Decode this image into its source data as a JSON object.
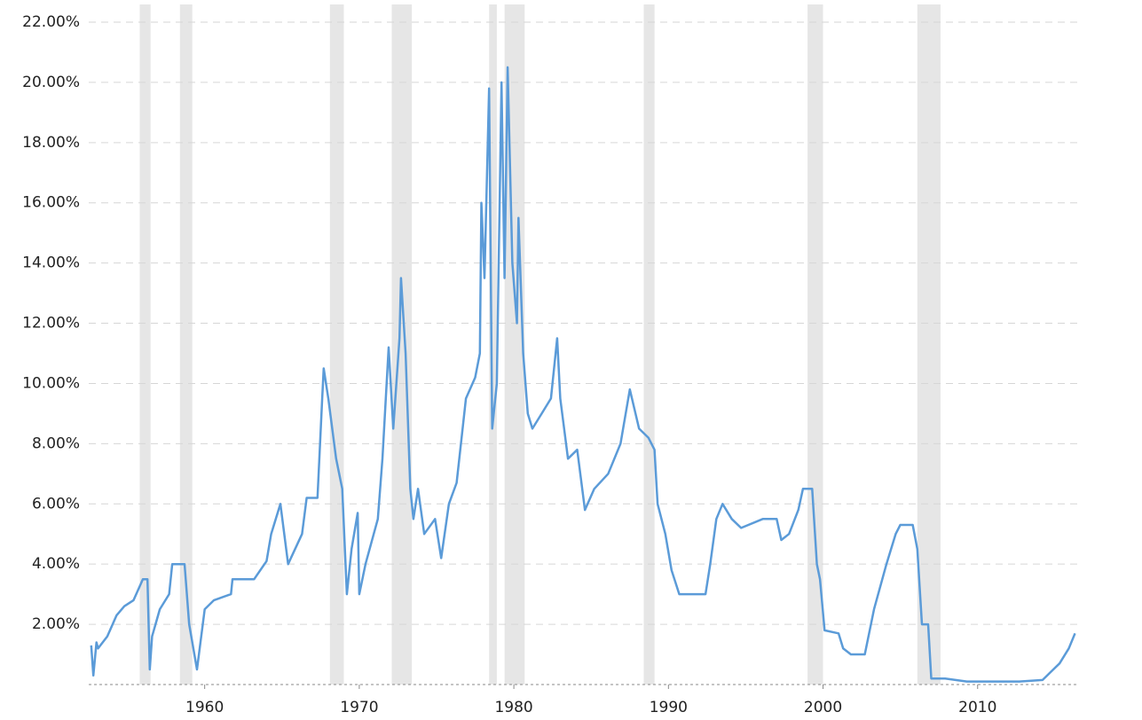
{
  "chart_data": {
    "type": "line",
    "color": "#5b9bd8",
    "recession_color": "#e6e6e6",
    "grid": true,
    "xlim": [
      1952.5,
      2016.5
    ],
    "xticks": [
      1960,
      1970,
      1980,
      1990,
      2000,
      2010
    ],
    "ylim": [
      0,
      22
    ],
    "yticks": [
      {
        "value": 2,
        "label": "2.00%"
      },
      {
        "value": 4,
        "label": "4.00%"
      },
      {
        "value": 6,
        "label": "6.00%"
      },
      {
        "value": 8,
        "label": "8.00%"
      },
      {
        "value": 10,
        "label": "10.00%"
      },
      {
        "value": 12,
        "label": "12.00%"
      },
      {
        "value": 14,
        "label": "14.00%"
      },
      {
        "value": 16,
        "label": "16.00%"
      },
      {
        "value": 18,
        "label": "18.00%"
      },
      {
        "value": 20,
        "label": "20.00%"
      },
      {
        "value": 22,
        "label": "22.00%"
      }
    ],
    "recessions": [
      [
        1955.8,
        1956.5
      ],
      [
        1958.4,
        1959.2
      ],
      [
        1968.1,
        1969.0
      ],
      [
        1972.1,
        1973.4
      ],
      [
        1978.4,
        1978.9
      ],
      [
        1979.4,
        1980.7
      ],
      [
        1988.4,
        1989.1
      ],
      [
        1999.0,
        2000.0
      ],
      [
        2006.1,
        2007.6
      ]
    ],
    "x": [
      1952.66,
      1952.8,
      1953.0,
      1953.1,
      1953.7,
      1954.3,
      1954.8,
      1955.4,
      1956.0,
      1956.3,
      1956.45,
      1956.6,
      1957.1,
      1957.7,
      1957.9,
      1958.7,
      1959.0,
      1959.5,
      1960.0,
      1960.6,
      1961.7,
      1961.8,
      1963.2,
      1964.0,
      1964.3,
      1964.9,
      1965.4,
      1966.3,
      1966.6,
      1967.3,
      1967.6,
      1967.7,
      1968.0,
      1968.5,
      1968.9,
      1969.2,
      1969.5,
      1969.9,
      1970.0,
      1970.4,
      1971.2,
      1971.5,
      1971.9,
      1972.2,
      1972.6,
      1972.7,
      1973.0,
      1973.3,
      1973.5,
      1973.8,
      1974.2,
      1974.9,
      1975.3,
      1975.8,
      1976.3,
      1976.9,
      1977.5,
      1977.8,
      1977.9,
      1978.1,
      1978.4,
      1978.6,
      1978.9,
      1979.2,
      1979.4,
      1979.6,
      1979.9,
      1980.2,
      1980.3,
      1980.6,
      1980.9,
      1981.2,
      1981.8,
      1982.4,
      1982.8,
      1983.0,
      1983.5,
      1984.1,
      1984.6,
      1985.2,
      1986.1,
      1986.9,
      1987.5,
      1988.1,
      1988.7,
      1989.1,
      1989.3,
      1989.8,
      1990.2,
      1990.7,
      1991.5,
      1992.4,
      1992.7,
      1993.1,
      1993.5,
      1994.1,
      1994.7,
      1996.1,
      1997.0,
      1997.3,
      1997.8,
      1998.4,
      1998.7,
      1999.3,
      1999.6,
      1999.8,
      2000.1,
      2001.0,
      2001.3,
      2001.8,
      2002.7,
      2003.3,
      2004.1,
      2004.7,
      2005.0,
      2005.8,
      2006.1,
      2006.4,
      2006.8,
      2007.0,
      2007.9,
      2009.3,
      2012.7,
      2014.2,
      2014.7,
      2015.3,
      2015.9,
      2016.3
    ],
    "values": [
      1.3,
      0.3,
      1.4,
      1.2,
      1.6,
      2.3,
      2.6,
      2.8,
      3.5,
      3.5,
      0.5,
      1.6,
      2.5,
      3.0,
      4.0,
      4.0,
      2.0,
      0.5,
      2.5,
      2.8,
      3.0,
      3.5,
      3.5,
      4.1,
      5.0,
      6.0,
      4.0,
      5.0,
      6.2,
      6.2,
      9.5,
      10.5,
      9.5,
      7.5,
      6.5,
      3.0,
      4.5,
      5.7,
      3.0,
      4.0,
      5.5,
      7.5,
      11.2,
      8.5,
      11.5,
      13.5,
      11.0,
      6.5,
      5.5,
      6.5,
      5.0,
      5.5,
      4.2,
      6.0,
      6.7,
      9.5,
      10.2,
      11.0,
      16.0,
      13.5,
      19.8,
      8.5,
      10.0,
      20.0,
      13.5,
      20.5,
      14.0,
      12.0,
      15.5,
      11.0,
      9.0,
      8.5,
      9.0,
      9.5,
      11.5,
      9.5,
      7.5,
      7.8,
      5.8,
      6.5,
      7.0,
      8.0,
      9.8,
      8.5,
      8.2,
      7.8,
      6.0,
      5.0,
      3.8,
      3.0,
      3.0,
      3.0,
      4.0,
      5.5,
      6.0,
      5.5,
      5.2,
      5.5,
      5.5,
      4.8,
      5.0,
      5.8,
      6.5,
      6.5,
      4.0,
      3.5,
      1.8,
      1.7,
      1.2,
      1.0,
      1.0,
      2.5,
      4.0,
      5.0,
      5.3,
      5.3,
      4.5,
      2.0,
      2.0,
      0.2,
      0.2,
      0.1,
      0.1,
      0.15,
      0.4,
      0.7,
      1.2,
      1.7
    ]
  }
}
